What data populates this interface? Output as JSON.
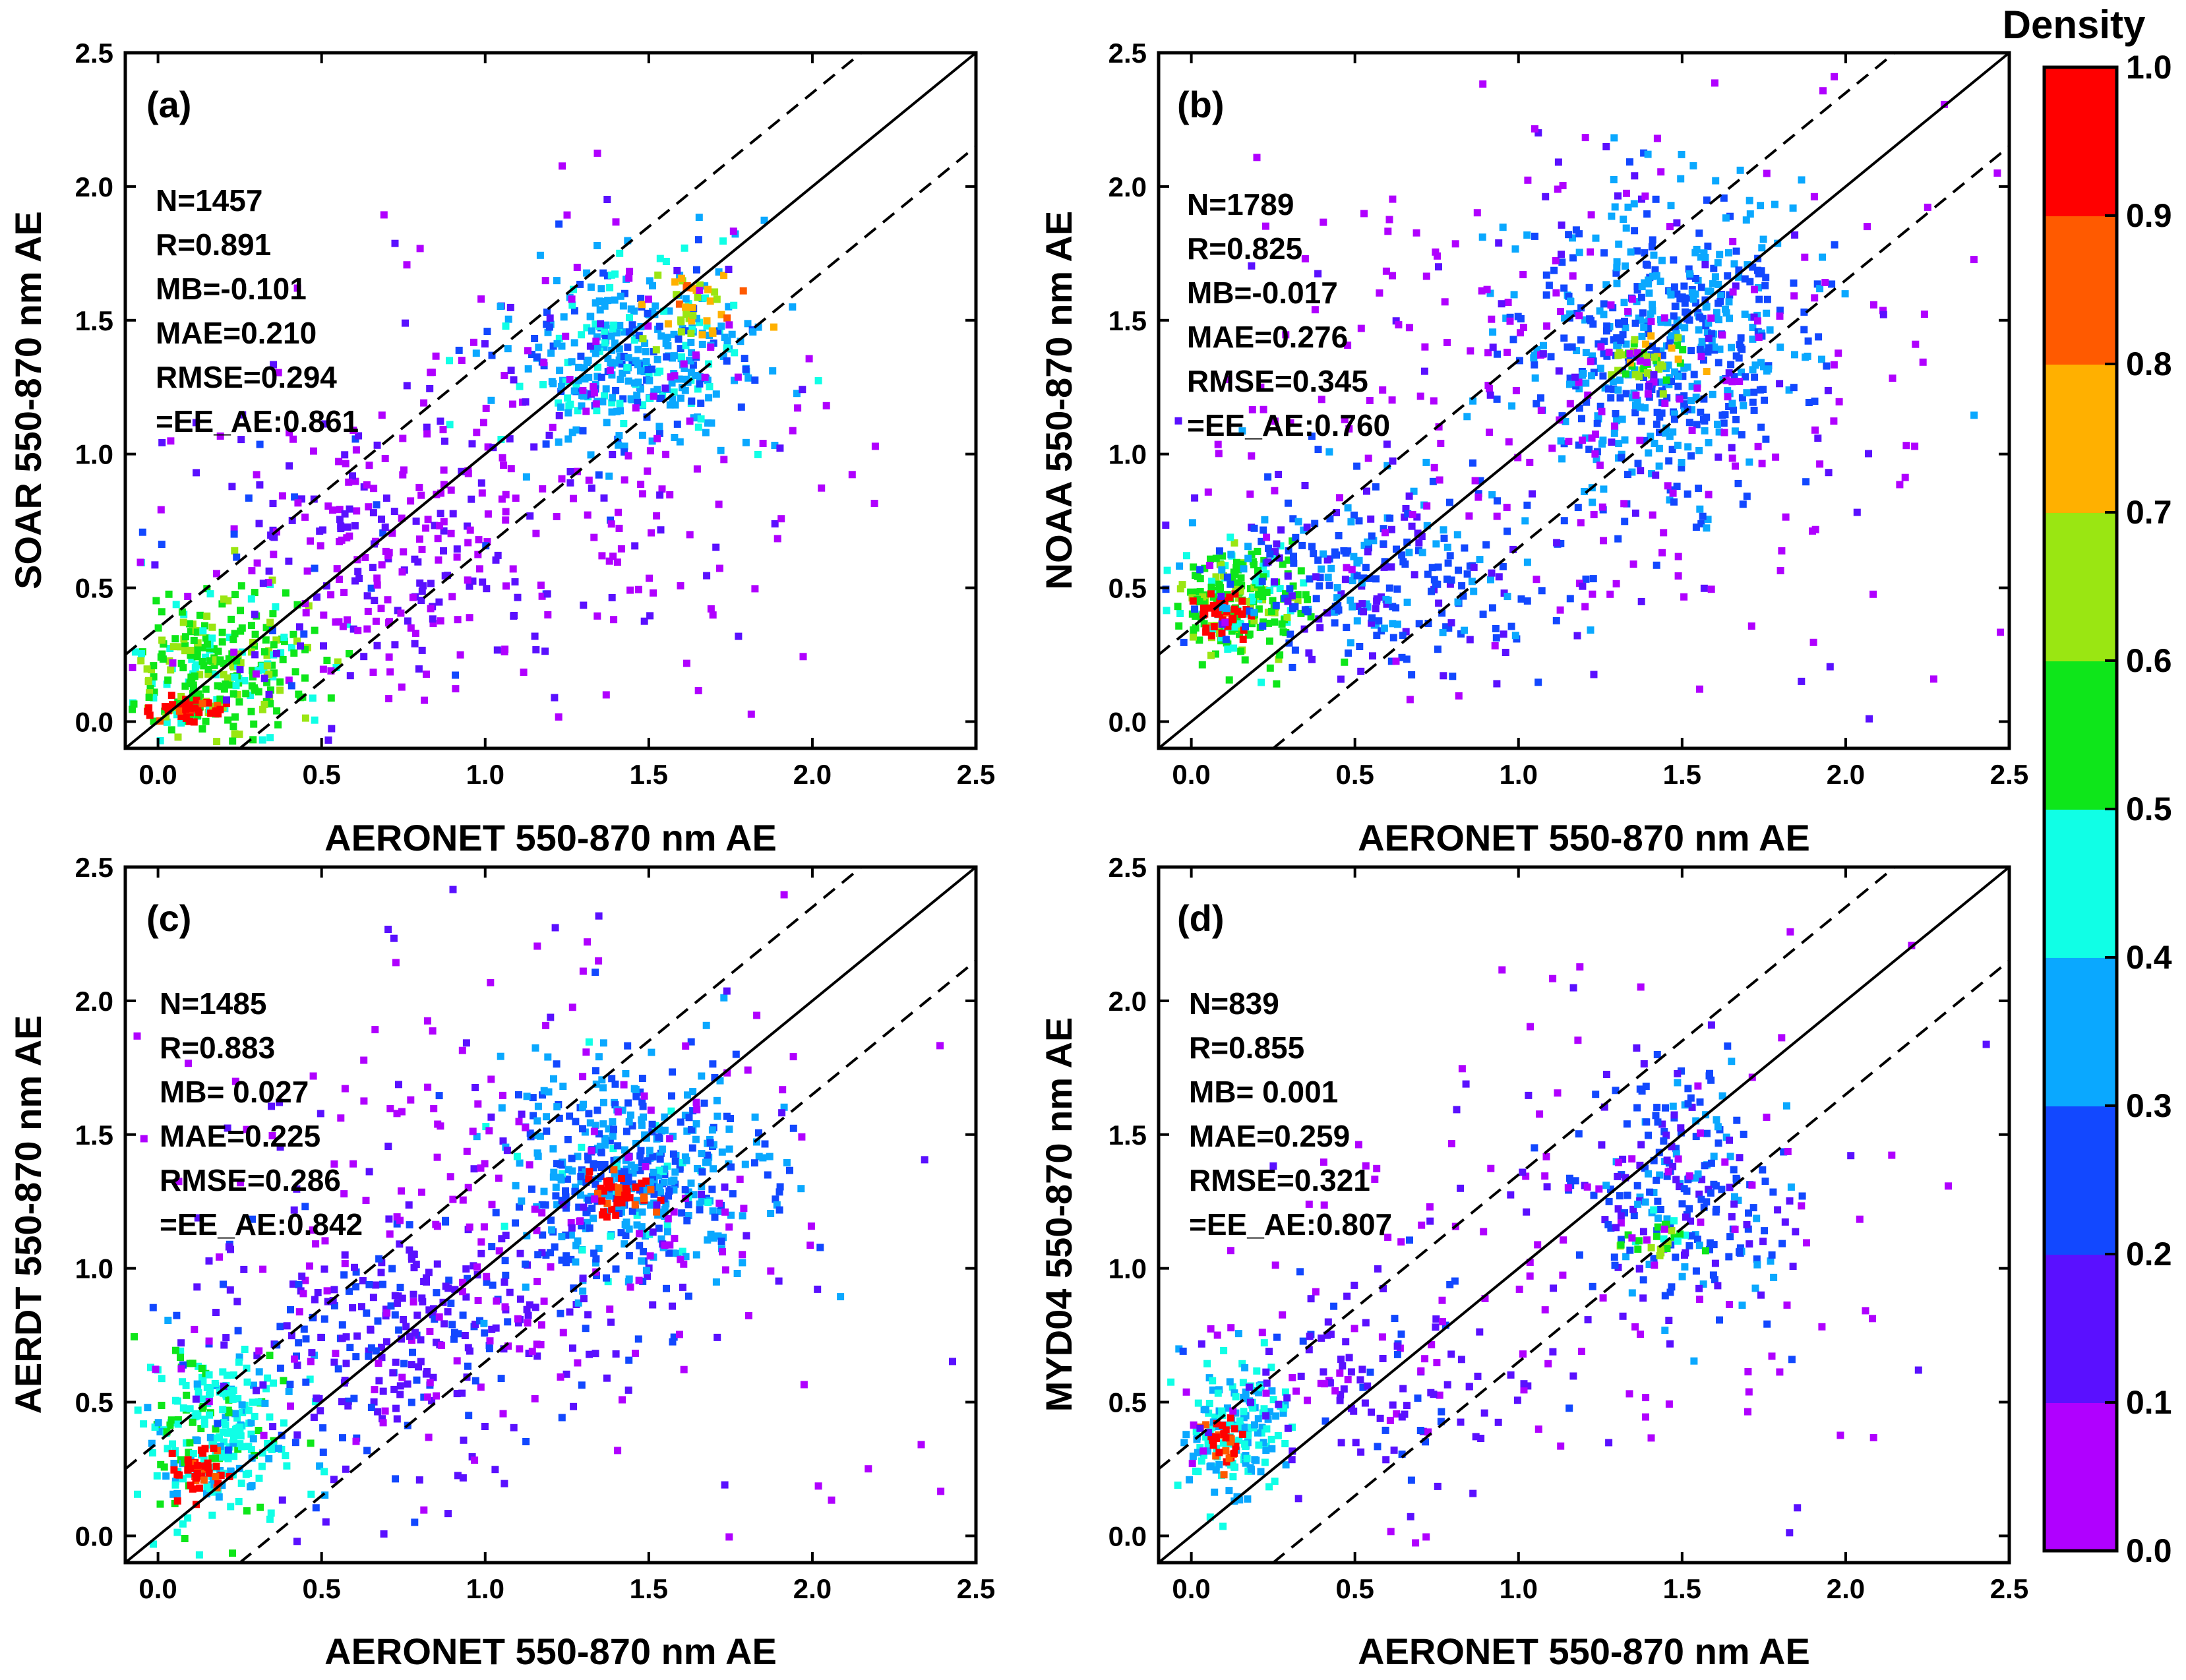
{
  "chart_data": {
    "type": "scatter",
    "figure_description": "Density scatter plots of satellite vs AERONET 550-870 nm Angstrom Exponent",
    "xlim": [
      -0.1,
      2.5
    ],
    "ylim": [
      -0.1,
      2.5
    ],
    "x_ticks": [
      "0.0",
      "0.5",
      "1.0",
      "1.5",
      "2.0",
      "2.5"
    ],
    "y_ticks": [
      "0.0",
      "0.5",
      "1.0",
      "1.5",
      "2.0",
      "2.5"
    ],
    "reference_lines": {
      "one_to_one": {
        "slope": 1,
        "intercept": 0
      },
      "expected_error_upper": {
        "slope": 1,
        "intercept": 0.35
      },
      "expected_error_lower": {
        "slope": 1,
        "intercept": -0.35
      }
    },
    "colorbar": {
      "title": "Density",
      "ticks": [
        "0.0",
        "0.1",
        "0.2",
        "0.3",
        "0.4",
        "0.5",
        "0.6",
        "0.7",
        "0.8",
        "0.9",
        "1.0"
      ],
      "colors": [
        "#b000ff",
        "#5a10ff",
        "#1248ff",
        "#0aa8ff",
        "#10ffe6",
        "#0ee61a",
        "#9ae612",
        "#ffb000",
        "#ff5a00",
        "#ff0000"
      ]
    },
    "panels": [
      {
        "tag": "(a)",
        "xlabel": "AERONET 550-870 nm AE",
        "ylabel": "SOAR 550-870 nm AE",
        "stats": [
          "N=1457",
          "R=0.891",
          "MB=-0.101",
          "MAE=0.210",
          "RMSE=0.294",
          "=EE_AE:0.861"
        ],
        "clusters": [
          {
            "cx": 0.18,
            "cy": 0.2,
            "sx": 0.15,
            "sy": 0.14,
            "n": 300,
            "density": 0.55
          },
          {
            "cx": 0.1,
            "cy": 0.05,
            "sx": 0.05,
            "sy": 0.02,
            "n": 40,
            "density": 0.95
          },
          {
            "cx": 0.65,
            "cy": 0.6,
            "sx": 0.3,
            "sy": 0.28,
            "n": 250,
            "density": 0.12
          },
          {
            "cx": 1.45,
            "cy": 1.35,
            "sx": 0.2,
            "sy": 0.18,
            "n": 380,
            "density": 0.35
          },
          {
            "cx": 1.65,
            "cy": 1.55,
            "sx": 0.08,
            "sy": 0.06,
            "n": 40,
            "density": 0.75
          },
          {
            "cx": 1.2,
            "cy": 1.0,
            "sx": 0.45,
            "sy": 0.45,
            "n": 200,
            "density": 0.05
          }
        ]
      },
      {
        "tag": "(b)",
        "xlabel": "AERONET 550-870 nm AE",
        "ylabel": "NOAA 550-870 nm AE",
        "stats": [
          "N=1789",
          "R=0.825",
          "MB=-0.017",
          "MAE=0.276",
          "RMSE=0.345",
          "=EE_AE:0.760"
        ],
        "clusters": [
          {
            "cx": 0.15,
            "cy": 0.45,
            "sx": 0.1,
            "sy": 0.1,
            "n": 220,
            "density": 0.55
          },
          {
            "cx": 0.1,
            "cy": 0.4,
            "sx": 0.04,
            "sy": 0.04,
            "n": 40,
            "density": 0.97
          },
          {
            "cx": 0.55,
            "cy": 0.55,
            "sx": 0.25,
            "sy": 0.18,
            "n": 300,
            "density": 0.25
          },
          {
            "cx": 1.45,
            "cy": 1.4,
            "sx": 0.22,
            "sy": 0.28,
            "n": 550,
            "density": 0.3
          },
          {
            "cx": 1.4,
            "cy": 1.35,
            "sx": 0.06,
            "sy": 0.05,
            "n": 40,
            "density": 0.65
          },
          {
            "cx": 1.2,
            "cy": 1.2,
            "sx": 0.55,
            "sy": 0.55,
            "n": 300,
            "density": 0.05
          }
        ]
      },
      {
        "tag": "(c)",
        "xlabel": "AERONET 550-870 nm AE",
        "ylabel": "AERDT 550-870 nm AE",
        "stats": [
          "N=1485",
          "R=0.883",
          "MB= 0.027",
          "MAE=0.225",
          "RMSE=0.286",
          "=EE_AE:0.842"
        ],
        "clusters": [
          {
            "cx": 0.18,
            "cy": 0.38,
            "sx": 0.12,
            "sy": 0.17,
            "n": 260,
            "density": 0.45
          },
          {
            "cx": 0.12,
            "cy": 0.25,
            "sx": 0.04,
            "sy": 0.05,
            "n": 40,
            "density": 0.95
          },
          {
            "cx": 0.75,
            "cy": 0.75,
            "sx": 0.3,
            "sy": 0.25,
            "n": 300,
            "density": 0.18
          },
          {
            "cx": 1.45,
            "cy": 1.35,
            "sx": 0.2,
            "sy": 0.2,
            "n": 480,
            "density": 0.32
          },
          {
            "cx": 1.42,
            "cy": 1.27,
            "sx": 0.06,
            "sy": 0.05,
            "n": 40,
            "density": 0.95
          },
          {
            "cx": 1.1,
            "cy": 1.15,
            "sx": 0.55,
            "sy": 0.5,
            "n": 250,
            "density": 0.05
          }
        ]
      },
      {
        "tag": "(d)",
        "xlabel": "AERONET 550-870 nm AE",
        "ylabel": "MYD04 550-870 nm AE",
        "stats": [
          "N=839",
          "R=0.855",
          "MB= 0.001",
          "MAE=0.259",
          "RMSE=0.321",
          "=EE_AE:0.807"
        ],
        "clusters": [
          {
            "cx": 0.13,
            "cy": 0.4,
            "sx": 0.08,
            "sy": 0.13,
            "n": 170,
            "density": 0.4
          },
          {
            "cx": 0.1,
            "cy": 0.35,
            "sx": 0.03,
            "sy": 0.05,
            "n": 30,
            "density": 0.92
          },
          {
            "cx": 0.55,
            "cy": 0.6,
            "sx": 0.25,
            "sy": 0.18,
            "n": 130,
            "density": 0.15
          },
          {
            "cx": 1.5,
            "cy": 1.3,
            "sx": 0.18,
            "sy": 0.22,
            "n": 230,
            "density": 0.25
          },
          {
            "cx": 1.42,
            "cy": 1.12,
            "sx": 0.05,
            "sy": 0.04,
            "n": 25,
            "density": 0.55
          },
          {
            "cx": 1.1,
            "cy": 1.1,
            "sx": 0.55,
            "sy": 0.55,
            "n": 150,
            "density": 0.05
          }
        ]
      }
    ]
  }
}
